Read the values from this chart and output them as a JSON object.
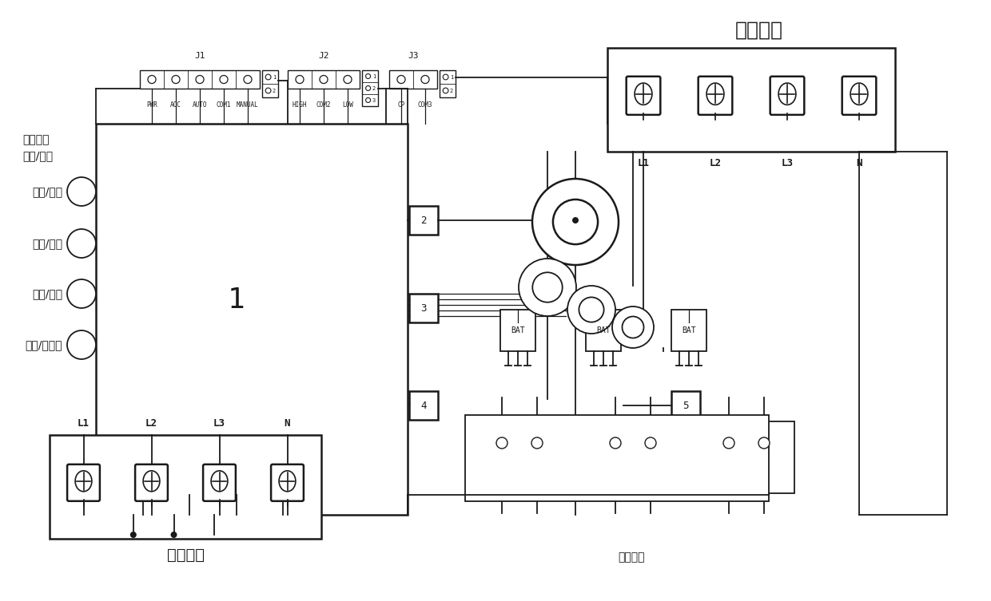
{
  "bg_color": "#ffffff",
  "line_color": "#1a1a1a",
  "fig_width": 12.4,
  "fig_height": 7.53,
  "power_input_label": "电源输入",
  "power_output_label": "电源输出",
  "output_control_label": "输出控制",
  "status_label1": "状态指示",
  "status_label2": "常亮/闪烁",
  "indicator_labels": [
    "过压/欠压",
    "过载/空载",
    "短路/漏电",
    "缺相/不平衡"
  ],
  "j1_labels": [
    "PWR",
    "ACC",
    "AUTO",
    "COM1",
    "MANUAL"
  ],
  "j2_labels": [
    "HIGH",
    "COM2",
    "LOW"
  ],
  "j3_labels": [
    "CP",
    "COM3"
  ],
  "term_labels": [
    "L1",
    "L2",
    "L3",
    "N"
  ]
}
